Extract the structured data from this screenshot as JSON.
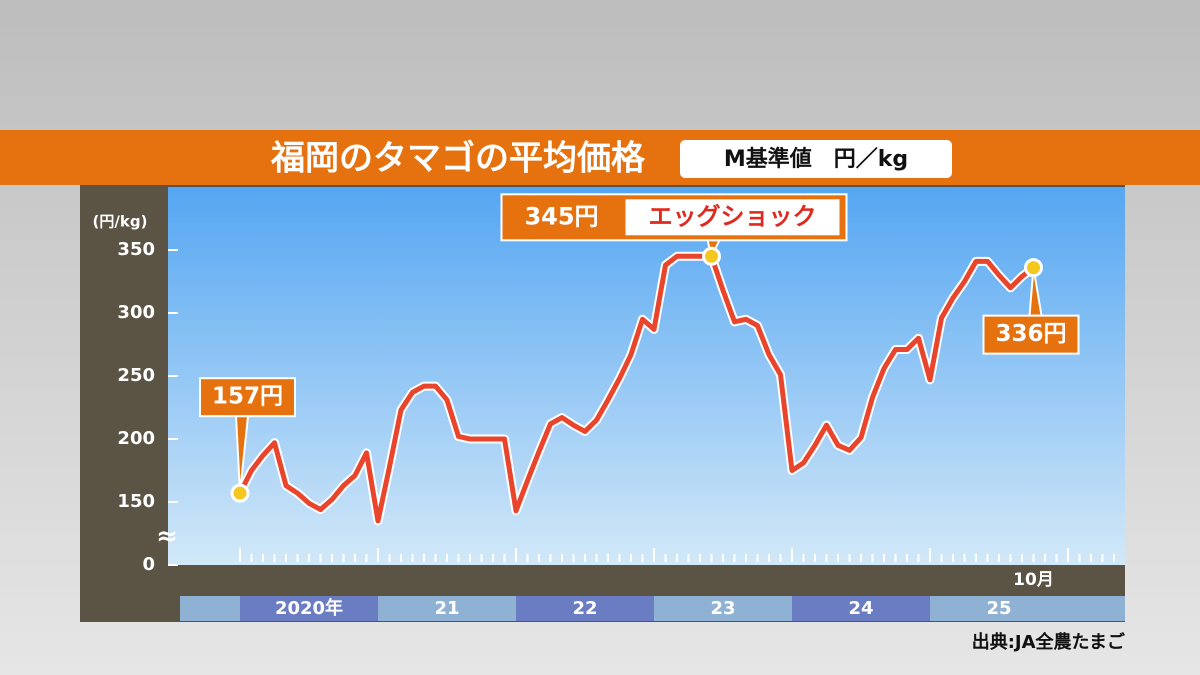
{
  "chart_data": {
    "type": "line",
    "title": "福岡のタマゴの平均価格",
    "subtitle": "M基準値　円／kg",
    "y_label": "(円/kg)",
    "source": "出典:JA全農たまご",
    "annotation": "エッグショック",
    "categories": [
      null,
      null,
      null,
      null,
      null,
      null,
      null,
      null,
      null,
      null,
      null,
      null,
      null,
      null,
      null,
      null,
      null,
      null,
      null,
      null,
      null,
      null,
      null,
      null,
      null,
      null,
      null,
      null,
      null,
      null,
      null,
      null,
      null,
      null,
      null,
      null,
      null,
      null,
      null,
      null,
      null,
      null,
      null,
      null,
      null,
      null,
      null,
      null,
      null,
      null,
      null,
      null,
      null,
      null,
      null,
      null,
      null,
      null,
      null,
      null,
      null,
      null,
      null,
      null,
      null,
      null,
      null,
      null,
      null,
      "10月"
    ],
    "periods": [
      "2020年",
      "21",
      "22",
      "23",
      "24",
      "25"
    ],
    "series": [
      {
        "name": "平均価格",
        "color": "#e8452c",
        "values": [
          157,
          175,
          187,
          197,
          163,
          157,
          149,
          144,
          152,
          163,
          171,
          189,
          135,
          178,
          223,
          237,
          242,
          242,
          231,
          202,
          200,
          200,
          200,
          200,
          143,
          167,
          190,
          212,
          217,
          211,
          206,
          215,
          231,
          248,
          267,
          295,
          287,
          338,
          345,
          345,
          345,
          345,
          318,
          293,
          295,
          290,
          267,
          251,
          175,
          181,
          195,
          211,
          195,
          191,
          201,
          233,
          256,
          271,
          271,
          280,
          247,
          296,
          312,
          325,
          341,
          341,
          330,
          320,
          329,
          336
        ],
        "value_labels": [
          "157円",
          null,
          null,
          null,
          null,
          null,
          null,
          null,
          null,
          null,
          null,
          null,
          null,
          null,
          null,
          null,
          null,
          null,
          null,
          null,
          null,
          null,
          null,
          null,
          null,
          null,
          null,
          null,
          null,
          null,
          null,
          null,
          null,
          null,
          null,
          null,
          null,
          null,
          null,
          null,
          null,
          "345円",
          null,
          null,
          null,
          null,
          null,
          null,
          null,
          null,
          null,
          null,
          null,
          null,
          null,
          null,
          null,
          null,
          null,
          null,
          null,
          null,
          null,
          null,
          null,
          null,
          null,
          null,
          null,
          "336円"
        ]
      }
    ],
    "ylim": [
      100,
      400
    ],
    "yticks": [
      0,
      150,
      200,
      250,
      300,
      350
    ],
    "axis_break": true
  }
}
